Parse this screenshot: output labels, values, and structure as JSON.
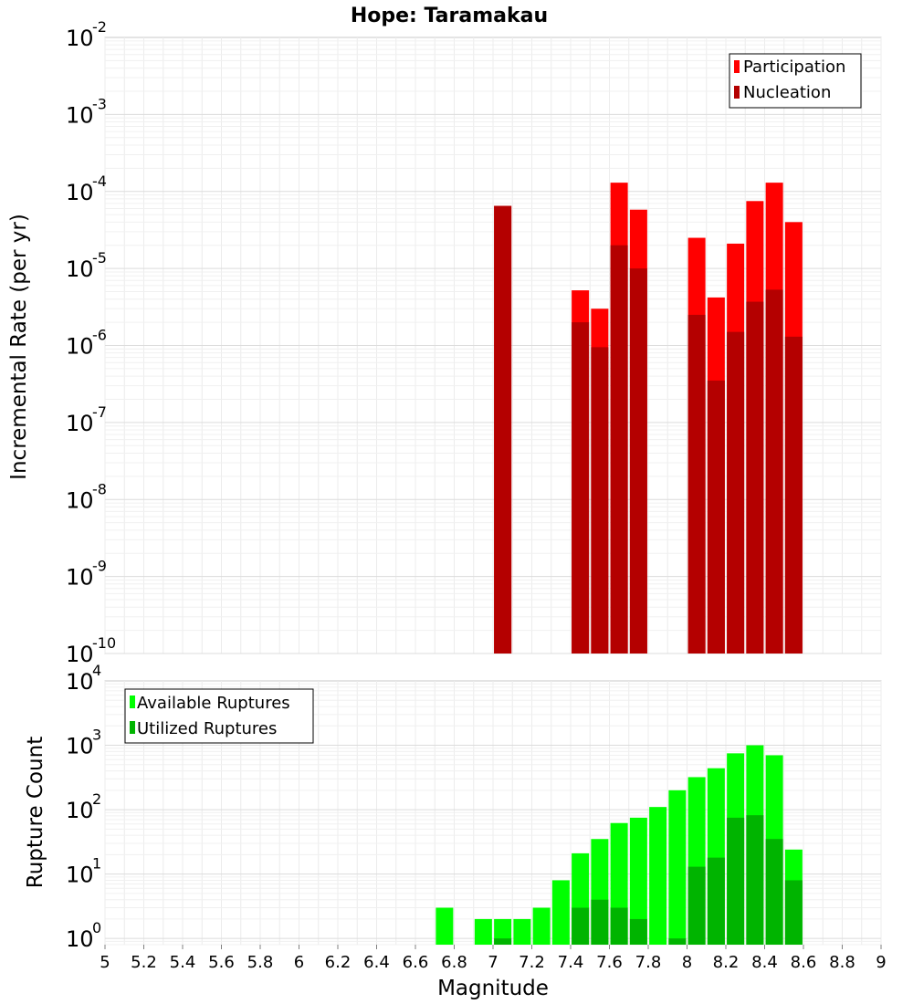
{
  "chart_data": [
    {
      "type": "bar",
      "title": "Hope: Taramakau",
      "xlabel": "Magnitude",
      "ylabel": "Incremental Rate (per yr)",
      "yscale": "log",
      "ylim": [
        1e-10,
        0.01
      ],
      "xlim": [
        5,
        9
      ],
      "grid": true,
      "legend_placement": "top-right",
      "x": [
        7.05,
        7.45,
        7.55,
        7.65,
        7.75,
        8.05,
        8.15,
        8.25,
        8.35,
        8.45,
        8.55
      ],
      "series": [
        {
          "name": "Participation",
          "color": "#ff0000",
          "values": [
            6.5e-05,
            5.2e-06,
            3e-06,
            0.00013,
            5.8e-05,
            2.5e-05,
            4.2e-06,
            2.1e-05,
            7.5e-05,
            0.00013,
            4e-05
          ]
        },
        {
          "name": "Nucleation",
          "color": "#b40000",
          "values": [
            6.5e-05,
            2e-06,
            9.5e-07,
            2e-05,
            1e-05,
            2.5e-06,
            3.5e-07,
            1.5e-06,
            3.7e-06,
            5.3e-06,
            1.3e-06
          ]
        }
      ],
      "yticks": [
        {
          "base": "10",
          "exp": "-10",
          "value": 1e-10
        },
        {
          "base": "10",
          "exp": "-9",
          "value": 1e-09
        },
        {
          "base": "10",
          "exp": "-8",
          "value": 1e-08
        },
        {
          "base": "10",
          "exp": "-7",
          "value": 1e-07
        },
        {
          "base": "10",
          "exp": "-6",
          "value": 1e-06
        },
        {
          "base": "10",
          "exp": "-5",
          "value": 1e-05
        },
        {
          "base": "10",
          "exp": "-4",
          "value": 0.0001
        },
        {
          "base": "10",
          "exp": "-3",
          "value": 0.001
        },
        {
          "base": "10",
          "exp": "-2",
          "value": 0.01
        }
      ]
    },
    {
      "type": "bar",
      "xlabel": "Magnitude",
      "ylabel": "Rupture Count",
      "yscale": "log",
      "ylim": [
        0.8,
        10000.0
      ],
      "xlim": [
        5,
        9
      ],
      "grid": true,
      "legend_placement": "top-left",
      "x": [
        6.75,
        6.95,
        7.05,
        7.15,
        7.25,
        7.35,
        7.45,
        7.55,
        7.65,
        7.75,
        7.85,
        7.95,
        8.05,
        8.15,
        8.25,
        8.35,
        8.45,
        8.55
      ],
      "series": [
        {
          "name": "Available Ruptures",
          "color": "#00ff00",
          "values": [
            3,
            2,
            2,
            2,
            3,
            8,
            21,
            35,
            62,
            75,
            110,
            200,
            320,
            440,
            750,
            1000,
            700,
            24
          ]
        },
        {
          "name": "Utilized Ruptures",
          "color": "#00b400",
          "values": [
            null,
            null,
            1,
            null,
            null,
            null,
            3,
            4,
            3,
            2,
            null,
            1,
            13,
            18,
            75,
            82,
            35,
            8
          ]
        }
      ],
      "yticks": [
        {
          "base": "10",
          "exp": "0",
          "value": 1
        },
        {
          "base": "10",
          "exp": "1",
          "value": 10
        },
        {
          "base": "10",
          "exp": "2",
          "value": 100
        },
        {
          "base": "10",
          "exp": "3",
          "value": 1000
        },
        {
          "base": "10",
          "exp": "4",
          "value": 10000
        }
      ],
      "xticks": [
        "5",
        "5.2",
        "5.4",
        "5.6",
        "5.8",
        "6",
        "6.2",
        "6.4",
        "6.6",
        "6.8",
        "7",
        "7.2",
        "7.4",
        "7.6",
        "7.8",
        "8",
        "8.2",
        "8.4",
        "8.6",
        "8.8",
        "9"
      ]
    }
  ]
}
